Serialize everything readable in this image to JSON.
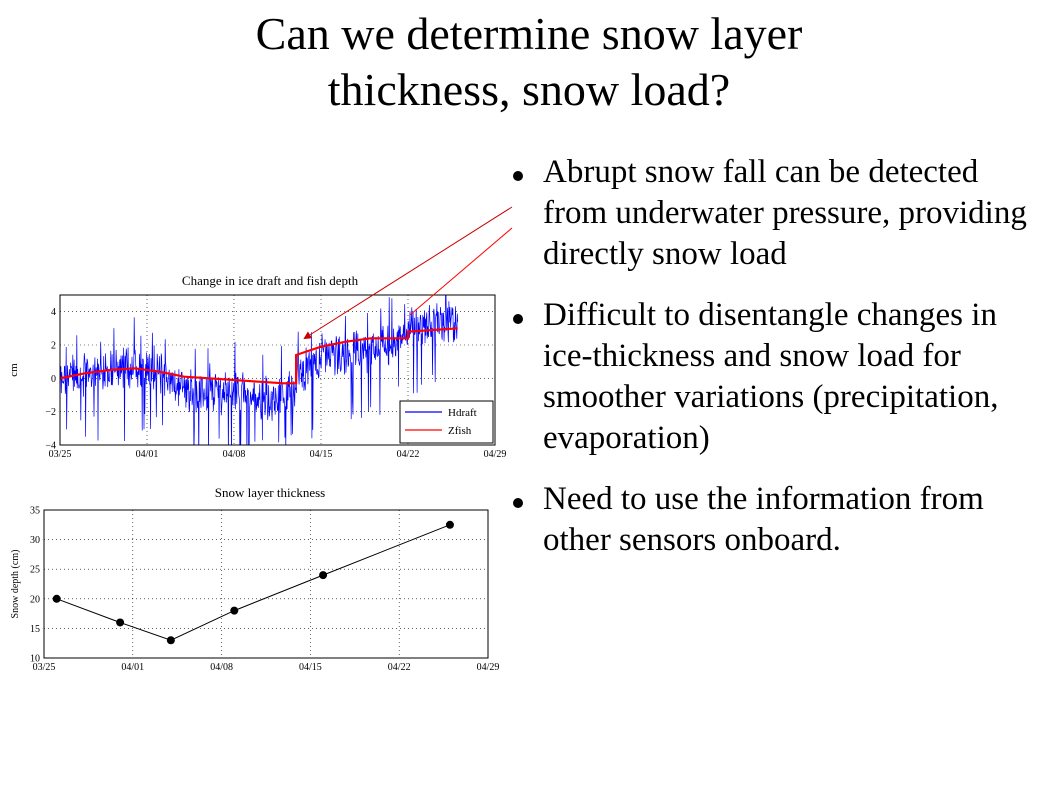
{
  "slide": {
    "title_line1": "Can we determine snow layer",
    "title_line2": "thickness, snow load?",
    "bullets": [
      "Abrupt snow fall can be detected from underwater pressure, providing directly snow load",
      "Difficult to disentangle changes in ice-thickness and snow load for smoother variations (precipitation, evaporation)",
      "Need to use the information from other sensors onboard."
    ]
  },
  "colors": {
    "hdraft": "#0000ff",
    "zfish": "#ff0000",
    "arrow": "#cc0000",
    "snow_line": "#000000"
  },
  "chart_data": [
    {
      "type": "line",
      "title": "Change in ice draft and fish depth",
      "xlabel": "",
      "ylabel": "cm",
      "x_ticks": [
        "03/25",
        "04/01",
        "04/08",
        "04/15",
        "04/22",
        "04/29"
      ],
      "y_ticks": [
        "4",
        "2",
        "0",
        "−2",
        "−4"
      ],
      "xlim": [
        "03/25",
        "04/29"
      ],
      "ylim": [
        -4,
        5
      ],
      "legend_position": "bottom-right",
      "series": [
        {
          "name": "Hdraft",
          "color": "#0000ff",
          "style": "noisy",
          "x": [
            "03/25",
            "03/27",
            "03/29",
            "03/31",
            "04/02",
            "04/04",
            "04/06",
            "04/08",
            "04/10",
            "04/12",
            "04/13",
            "04/13",
            "04/15",
            "04/17",
            "04/19",
            "04/21",
            "04/22",
            "04/24",
            "04/26"
          ],
          "y": [
            -0.1,
            0.3,
            0.6,
            0.7,
            0.2,
            -0.6,
            -0.8,
            -0.7,
            -1.2,
            -1.0,
            -0.6,
            0.0,
            1.3,
            1.5,
            1.8,
            2.2,
            2.8,
            3.3,
            3.3
          ]
        },
        {
          "name": "Zfish",
          "color": "#ff0000",
          "style": "line",
          "x": [
            "03/25",
            "03/27",
            "03/29",
            "03/31",
            "04/02",
            "04/04",
            "04/06",
            "04/08",
            "04/10",
            "04/12",
            "04/13",
            "04/13",
            "04/15",
            "04/17",
            "04/19",
            "04/21",
            "04/22",
            "04/22",
            "04/24",
            "04/26"
          ],
          "y": [
            0.0,
            0.3,
            0.5,
            0.6,
            0.4,
            0.1,
            0.0,
            -0.1,
            -0.2,
            -0.3,
            -0.3,
            1.4,
            1.9,
            2.2,
            2.4,
            2.4,
            2.4,
            2.8,
            2.9,
            3.0
          ]
        }
      ]
    },
    {
      "type": "line",
      "title": "Snow layer thickness",
      "xlabel": "",
      "ylabel": "Snow depth (cm)",
      "x_ticks": [
        "03/25",
        "04/01",
        "04/08",
        "04/15",
        "04/22",
        "04/29"
      ],
      "y_ticks": [
        "35",
        "30",
        "25",
        "20",
        "15",
        "10"
      ],
      "xlim": [
        "03/25",
        "04/29"
      ],
      "ylim": [
        10,
        35
      ],
      "series": [
        {
          "name": "",
          "color": "#000000",
          "x": [
            "03/26",
            "03/31",
            "04/04",
            "04/09",
            "04/16",
            "04/26"
          ],
          "y": [
            20,
            16,
            13,
            18,
            24,
            32.5
          ]
        }
      ]
    }
  ]
}
